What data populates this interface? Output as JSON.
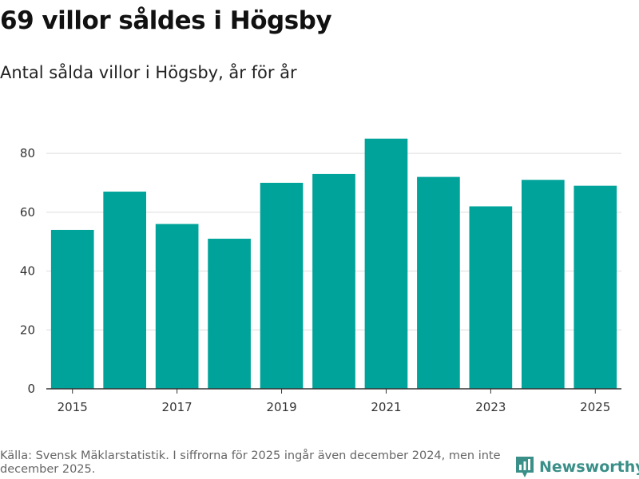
{
  "header": {
    "title": "69 villor såldes i Högsby",
    "subtitle": "Antal sålda villor i Högsby, år för år"
  },
  "colors": {
    "bar": "#00a39a",
    "grid": "#dddddd",
    "axis": "#333333",
    "brand": "#3a8f88"
  },
  "chart_data": {
    "type": "bar",
    "title": "69 villor såldes i Högsby",
    "subtitle": "Antal sålda villor i Högsby, år för år",
    "xlabel": "",
    "ylabel": "",
    "categories": [
      "2015",
      "2016",
      "2017",
      "2018",
      "2019",
      "2020",
      "2021",
      "2022",
      "2023",
      "2024",
      "2025"
    ],
    "values": [
      54,
      67,
      56,
      51,
      70,
      73,
      85,
      72,
      62,
      71,
      69
    ],
    "x_tick_labels": [
      "2015",
      "2017",
      "2019",
      "2021",
      "2023",
      "2025"
    ],
    "y_ticks": [
      0,
      20,
      40,
      60,
      80
    ],
    "ylim": [
      0,
      85
    ],
    "grid": true
  },
  "footer": {
    "source": "Källa: Svensk Mäklarstatistik. I siffrorna för 2025 ingår även december 2024, men inte december 2025."
  },
  "brand": {
    "name": "Newsworthy",
    "icon": "newsworthy-logo-icon"
  }
}
